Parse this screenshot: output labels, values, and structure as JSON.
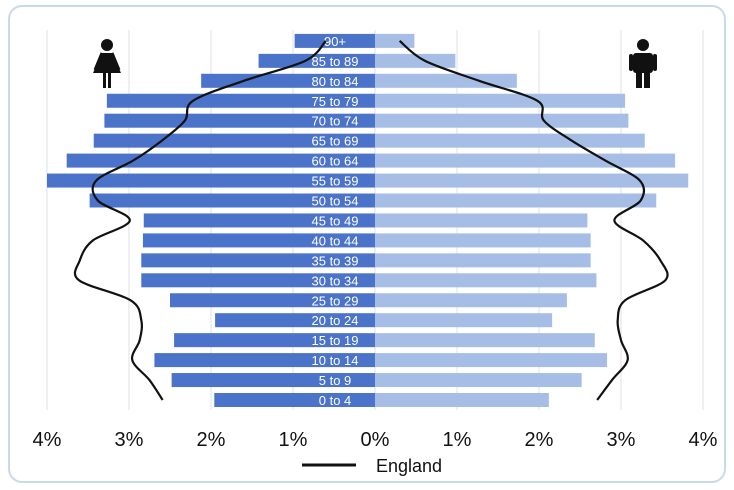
{
  "chart_data": {
    "type": "bar",
    "orientation": "horizontal-population-pyramid",
    "categories": [
      "0 to 4",
      "5 to 9",
      "10 to 14",
      "15 to 19",
      "20 to 24",
      "25 to 29",
      "30 to 34",
      "35 to 39",
      "40 to 44",
      "45 to 49",
      "50 to 54",
      "55 to 59",
      "60 to 64",
      "65 to 69",
      "70 to 74",
      "75 to 79",
      "80 to 84",
      "85 to 89",
      "90+"
    ],
    "series": [
      {
        "values": [
          1.96,
          2.48,
          2.69,
          2.45,
          1.95,
          2.5,
          2.85,
          2.85,
          2.83,
          2.82,
          3.48,
          4.0,
          3.76,
          3.43,
          3.3,
          3.27,
          2.12,
          1.42,
          0.98
        ]
      },
      {
        "values": [
          2.12,
          2.52,
          2.83,
          2.68,
          2.16,
          2.34,
          2.7,
          2.63,
          2.63,
          2.59,
          3.43,
          3.82,
          3.66,
          3.29,
          3.09,
          3.05,
          1.73,
          0.98,
          0.48
        ]
      },
      {
        "name": "England",
        "values_female": [
          2.59,
          2.75,
          2.96,
          2.87,
          2.85,
          2.98,
          3.61,
          3.6,
          3.44,
          2.99,
          3.38,
          3.4,
          2.95,
          2.6,
          2.32,
          2.22,
          1.6,
          0.85,
          0.6
        ],
        "values_male": [
          2.71,
          2.89,
          3.08,
          3.0,
          2.96,
          3.05,
          3.54,
          3.48,
          3.27,
          2.92,
          3.24,
          3.23,
          2.81,
          2.4,
          2.06,
          1.98,
          1.27,
          0.61,
          0.3
        ]
      }
    ],
    "x_ticks": [
      "4%",
      "3%",
      "2%",
      "1%",
      "0%",
      "1%",
      "2%",
      "3%",
      "4%"
    ],
    "xlim": [
      -4,
      4
    ],
    "grid": "vertical",
    "legend": "bottom-center",
    "colors": {
      "female_bar": "#4a73c9",
      "male_bar": "#a6bde6",
      "england_line": "#111111",
      "grid": "#dde3ea",
      "icon": "#111111"
    },
    "icons": {
      "left": "female-icon",
      "right": "male-icon"
    }
  }
}
